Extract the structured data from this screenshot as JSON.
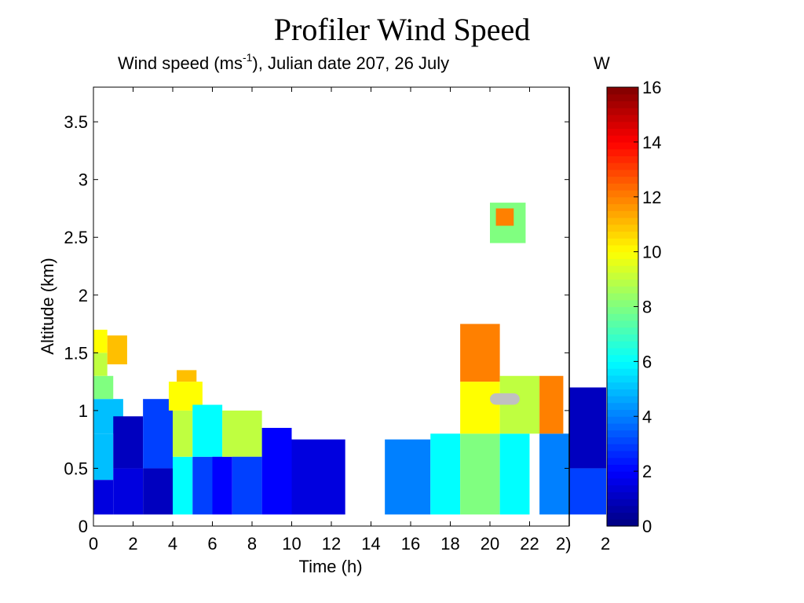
{
  "page": {
    "title": "Profiler Wind Speed"
  },
  "chart_data": {
    "type": "heatmap",
    "title_prefix": "Wind speed (ms",
    "title_sup": "-1",
    "title_suffix": "), Julian date 207, 26 July",
    "title_clipped": "W",
    "xlabel": "Time (h)",
    "ylabel": "Altitude (km)",
    "xlim": [
      0,
      24
    ],
    "ylim": [
      0,
      3.8
    ],
    "x_ticks": [
      0,
      2,
      4,
      6,
      8,
      10,
      12,
      14,
      16,
      18,
      20,
      22
    ],
    "x_tick_clipped": "2)",
    "x_tick_clipped_2": "2",
    "y_ticks": [
      0,
      0.5,
      1,
      1.5,
      2,
      2.5,
      3,
      3.5
    ],
    "colorbar": {
      "min": 0,
      "max": 16,
      "ticks": [
        0,
        2,
        4,
        6,
        8,
        10,
        12,
        14,
        16
      ],
      "colormap": "jet"
    },
    "vertical_marker_x": 24,
    "missing_data_color": "#c0c0c0",
    "cells": [
      {
        "x": [
          0,
          1
        ],
        "y": [
          0.1,
          0.4
        ],
        "v": 1.5
      },
      {
        "x": [
          0,
          1
        ],
        "y": [
          0.4,
          0.8
        ],
        "v": 5
      },
      {
        "x": [
          0,
          1.5
        ],
        "y": [
          0.8,
          1.1
        ],
        "v": 5
      },
      {
        "x": [
          0,
          1
        ],
        "y": [
          1.1,
          1.3
        ],
        "v": 8
      },
      {
        "x": [
          0,
          0.7
        ],
        "y": [
          1.3,
          1.5
        ],
        "v": 9
      },
      {
        "x": [
          0,
          0.7
        ],
        "y": [
          1.5,
          1.7
        ],
        "v": 10
      },
      {
        "x": [
          0.7,
          1.7
        ],
        "y": [
          1.4,
          1.65
        ],
        "v": 11
      },
      {
        "x": [
          1,
          2.5
        ],
        "y": [
          0.1,
          0.5
        ],
        "v": 1.5
      },
      {
        "x": [
          1,
          2.5
        ],
        "y": [
          0.5,
          0.95
        ],
        "v": 1
      },
      {
        "x": [
          2.5,
          4
        ],
        "y": [
          0.1,
          0.5
        ],
        "v": 1
      },
      {
        "x": [
          2.5,
          4
        ],
        "y": [
          0.5,
          1.1
        ],
        "v": 3
      },
      {
        "x": [
          4,
          5
        ],
        "y": [
          0.1,
          0.6
        ],
        "v": 6
      },
      {
        "x": [
          4,
          5
        ],
        "y": [
          0.6,
          1.0
        ],
        "v": 9
      },
      {
        "x": [
          3.8,
          5.5
        ],
        "y": [
          1.0,
          1.25
        ],
        "v": 10
      },
      {
        "x": [
          4.2,
          5.2
        ],
        "y": [
          1.25,
          1.35
        ],
        "v": 11
      },
      {
        "x": [
          5,
          6
        ],
        "y": [
          0.1,
          0.6
        ],
        "v": 3
      },
      {
        "x": [
          5,
          6.5
        ],
        "y": [
          0.6,
          1.05
        ],
        "v": 6
      },
      {
        "x": [
          6,
          7
        ],
        "y": [
          0.1,
          0.6
        ],
        "v": 2
      },
      {
        "x": [
          6.5,
          8.5
        ],
        "y": [
          0.6,
          1.0
        ],
        "v": 9
      },
      {
        "x": [
          7,
          8.5
        ],
        "y": [
          0.1,
          0.6
        ],
        "v": 3
      },
      {
        "x": [
          8.5,
          10
        ],
        "y": [
          0.1,
          0.85
        ],
        "v": 2
      },
      {
        "x": [
          10,
          12.7
        ],
        "y": [
          0.1,
          0.75
        ],
        "v": 1.5
      },
      {
        "x": [
          14.7,
          17
        ],
        "y": [
          0.1,
          0.75
        ],
        "v": 4
      },
      {
        "x": [
          17,
          18.5
        ],
        "y": [
          0.1,
          0.8
        ],
        "v": 6
      },
      {
        "x": [
          18.5,
          20.5
        ],
        "y": [
          0.1,
          0.8
        ],
        "v": 8
      },
      {
        "x": [
          18.5,
          20.5
        ],
        "y": [
          0.8,
          1.25
        ],
        "v": 10
      },
      {
        "x": [
          18.5,
          20.5
        ],
        "y": [
          1.25,
          1.75
        ],
        "v": 12
      },
      {
        "x": [
          20.5,
          22
        ],
        "y": [
          0.1,
          0.8
        ],
        "v": 6
      },
      {
        "x": [
          20.5,
          22.5
        ],
        "y": [
          0.8,
          1.3
        ],
        "v": 9
      },
      {
        "x": [
          22.5,
          24
        ],
        "y": [
          0.1,
          0.8
        ],
        "v": 4
      },
      {
        "x": [
          22.5,
          23.7
        ],
        "y": [
          0.8,
          1.3
        ],
        "v": 12
      },
      {
        "x": [
          24,
          26
        ],
        "y": [
          0.1,
          0.5
        ],
        "v": 3
      },
      {
        "x": [
          24,
          26
        ],
        "y": [
          0.5,
          1.2
        ],
        "v": 1
      },
      {
        "x": [
          20,
          21.8
        ],
        "y": [
          2.45,
          2.8
        ],
        "v": 8
      },
      {
        "x": [
          20.3,
          21.2
        ],
        "y": [
          2.6,
          2.75
        ],
        "v": 12
      }
    ],
    "missing_cells": [
      {
        "x": [
          20,
          21.5
        ],
        "y": [
          1.05,
          1.15
        ]
      }
    ]
  }
}
